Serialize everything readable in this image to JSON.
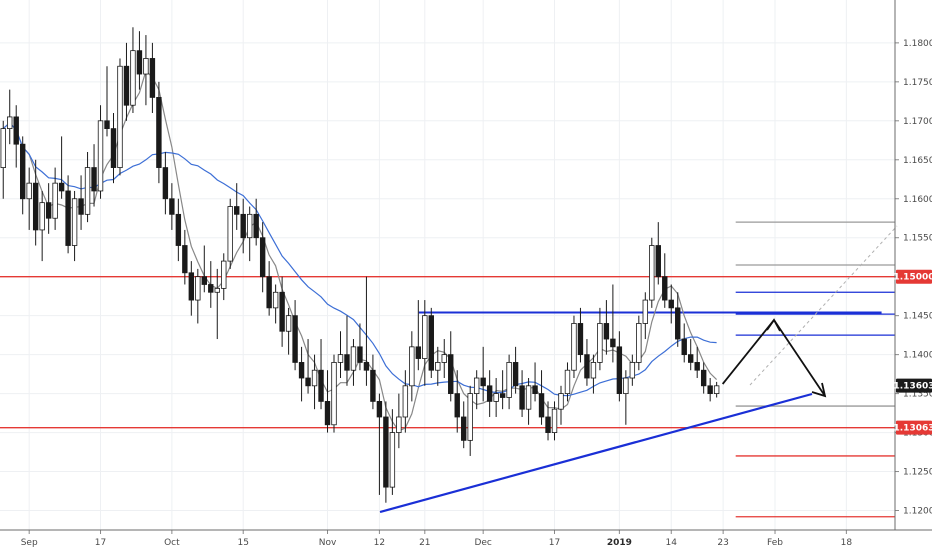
{
  "chart_data": {
    "type": "candlestick",
    "y_axis": {
      "ylim": [
        1.1175,
        1.1855
      ],
      "tick_labels": [
        "1.18000",
        "1.17500",
        "1.17000",
        "1.16500",
        "1.16000",
        "1.15500",
        "1.15000",
        "1.14500",
        "1.14000",
        "1.13500",
        "1.13000",
        "1.12500",
        "1.12000"
      ],
      "tick_values": [
        1.18,
        1.175,
        1.17,
        1.165,
        1.16,
        1.155,
        1.15,
        1.145,
        1.14,
        1.135,
        1.13,
        1.125,
        1.12
      ]
    },
    "x_axis": {
      "tick_labels": [
        "Sep",
        "17",
        "Oct",
        "15",
        "Nov",
        "12",
        "21",
        "Dec",
        "17",
        "2019",
        "14",
        "23",
        "Feb",
        "18"
      ],
      "tick_index": [
        4,
        15,
        26,
        37,
        50,
        58,
        65,
        74,
        85,
        95,
        103,
        111,
        119,
        130
      ],
      "bold_label": "2019",
      "n_bars": 138
    },
    "price_badges": [
      {
        "label": "1.15000",
        "value": 1.15,
        "color": "#e53935",
        "text_color": "#ffffff"
      },
      {
        "label": "1.13603",
        "value": 1.13603,
        "color": "#1a1a1a",
        "text_color": "#ffffff"
      },
      {
        "label": "1.13063",
        "value": 1.13063,
        "color": "#e53935",
        "text_color": "#ffffff"
      }
    ],
    "ohlc": [
      [
        1.164,
        1.17,
        1.16,
        1.169
      ],
      [
        1.169,
        1.174,
        1.167,
        1.1705
      ],
      [
        1.1705,
        1.172,
        1.164,
        1.167
      ],
      [
        1.167,
        1.168,
        1.158,
        1.16
      ],
      [
        1.16,
        1.164,
        1.156,
        1.162
      ],
      [
        1.162,
        1.165,
        1.154,
        1.156
      ],
      [
        1.156,
        1.161,
        1.152,
        1.1595
      ],
      [
        1.1595,
        1.162,
        1.1555,
        1.1575
      ],
      [
        1.1575,
        1.164,
        1.156,
        1.162
      ],
      [
        1.162,
        1.168,
        1.16,
        1.161
      ],
      [
        1.161,
        1.163,
        1.153,
        1.154
      ],
      [
        1.154,
        1.161,
        1.152,
        1.16
      ],
      [
        1.16,
        1.163,
        1.156,
        1.158
      ],
      [
        1.158,
        1.166,
        1.157,
        1.164
      ],
      [
        1.164,
        1.167,
        1.159,
        1.161
      ],
      [
        1.161,
        1.172,
        1.16,
        1.17
      ],
      [
        1.17,
        1.177,
        1.168,
        1.169
      ],
      [
        1.169,
        1.171,
        1.162,
        1.164
      ],
      [
        1.164,
        1.178,
        1.163,
        1.177
      ],
      [
        1.177,
        1.18,
        1.17,
        1.172
      ],
      [
        1.172,
        1.182,
        1.171,
        1.179
      ],
      [
        1.179,
        1.1815,
        1.174,
        1.176
      ],
      [
        1.176,
        1.181,
        1.172,
        1.178
      ],
      [
        1.178,
        1.18,
        1.171,
        1.173
      ],
      [
        1.173,
        1.175,
        1.162,
        1.164
      ],
      [
        1.164,
        1.166,
        1.158,
        1.16
      ],
      [
        1.16,
        1.162,
        1.156,
        1.158
      ],
      [
        1.158,
        1.16,
        1.152,
        1.154
      ],
      [
        1.154,
        1.156,
        1.149,
        1.1505
      ],
      [
        1.1505,
        1.152,
        1.145,
        1.147
      ],
      [
        1.147,
        1.151,
        1.144,
        1.15
      ],
      [
        1.15,
        1.154,
        1.148,
        1.149
      ],
      [
        1.149,
        1.152,
        1.146,
        1.148
      ],
      [
        1.148,
        1.151,
        1.142,
        1.1485
      ],
      [
        1.1485,
        1.153,
        1.147,
        1.152
      ],
      [
        1.152,
        1.16,
        1.151,
        1.159
      ],
      [
        1.159,
        1.162,
        1.156,
        1.158
      ],
      [
        1.158,
        1.16,
        1.153,
        1.155
      ],
      [
        1.155,
        1.159,
        1.152,
        1.158
      ],
      [
        1.158,
        1.16,
        1.154,
        1.155
      ],
      [
        1.155,
        1.157,
        1.148,
        1.15
      ],
      [
        1.15,
        1.152,
        1.145,
        1.146
      ],
      [
        1.146,
        1.149,
        1.144,
        1.148
      ],
      [
        1.148,
        1.15,
        1.141,
        1.143
      ],
      [
        1.143,
        1.146,
        1.14,
        1.145
      ],
      [
        1.145,
        1.147,
        1.138,
        1.139
      ],
      [
        1.139,
        1.141,
        1.134,
        1.137
      ],
      [
        1.137,
        1.142,
        1.135,
        1.136
      ],
      [
        1.136,
        1.14,
        1.133,
        1.138
      ],
      [
        1.138,
        1.142,
        1.133,
        1.134
      ],
      [
        1.134,
        1.138,
        1.13,
        1.131
      ],
      [
        1.131,
        1.14,
        1.13,
        1.139
      ],
      [
        1.139,
        1.143,
        1.137,
        1.14
      ],
      [
        1.14,
        1.145,
        1.136,
        1.138
      ],
      [
        1.138,
        1.142,
        1.136,
        1.141
      ],
      [
        1.141,
        1.144,
        1.138,
        1.139
      ],
      [
        1.139,
        1.15,
        1.136,
        1.138
      ],
      [
        1.138,
        1.14,
        1.133,
        1.134
      ],
      [
        1.134,
        1.135,
        1.122,
        1.132
      ],
      [
        1.132,
        1.134,
        1.121,
        1.123
      ],
      [
        1.123,
        1.133,
        1.122,
        1.13
      ],
      [
        1.13,
        1.135,
        1.128,
        1.132
      ],
      [
        1.132,
        1.138,
        1.13,
        1.136
      ],
      [
        1.136,
        1.143,
        1.134,
        1.141
      ],
      [
        1.141,
        1.147,
        1.138,
        1.1395
      ],
      [
        1.1395,
        1.147,
        1.136,
        1.145
      ],
      [
        1.145,
        1.146,
        1.137,
        1.138
      ],
      [
        1.138,
        1.141,
        1.136,
        1.139
      ],
      [
        1.139,
        1.142,
        1.137,
        1.14
      ],
      [
        1.14,
        1.143,
        1.134,
        1.135
      ],
      [
        1.135,
        1.138,
        1.13,
        1.132
      ],
      [
        1.132,
        1.134,
        1.128,
        1.129
      ],
      [
        1.129,
        1.136,
        1.127,
        1.135
      ],
      [
        1.135,
        1.138,
        1.133,
        1.137
      ],
      [
        1.137,
        1.141,
        1.134,
        1.136
      ],
      [
        1.136,
        1.138,
        1.132,
        1.134
      ],
      [
        1.134,
        1.137,
        1.132,
        1.135
      ],
      [
        1.135,
        1.138,
        1.133,
        1.1345
      ],
      [
        1.1345,
        1.14,
        1.133,
        1.139
      ],
      [
        1.139,
        1.141,
        1.135,
        1.136
      ],
      [
        1.136,
        1.138,
        1.132,
        1.133
      ],
      [
        1.133,
        1.137,
        1.131,
        1.136
      ],
      [
        1.136,
        1.139,
        1.134,
        1.135
      ],
      [
        1.135,
        1.138,
        1.131,
        1.132
      ],
      [
        1.132,
        1.134,
        1.129,
        1.13
      ],
      [
        1.13,
        1.134,
        1.129,
        1.133
      ],
      [
        1.133,
        1.136,
        1.131,
        1.135
      ],
      [
        1.135,
        1.139,
        1.134,
        1.138
      ],
      [
        1.138,
        1.145,
        1.137,
        1.144
      ],
      [
        1.144,
        1.146,
        1.139,
        1.14
      ],
      [
        1.14,
        1.142,
        1.136,
        1.137
      ],
      [
        1.137,
        1.14,
        1.135,
        1.139
      ],
      [
        1.139,
        1.146,
        1.138,
        1.144
      ],
      [
        1.144,
        1.147,
        1.14,
        1.142
      ],
      [
        1.142,
        1.149,
        1.139,
        1.141
      ],
      [
        1.141,
        1.143,
        1.134,
        1.135
      ],
      [
        1.135,
        1.138,
        1.131,
        1.137
      ],
      [
        1.137,
        1.14,
        1.136,
        1.139
      ],
      [
        1.139,
        1.145,
        1.138,
        1.144
      ],
      [
        1.144,
        1.148,
        1.142,
        1.147
      ],
      [
        1.147,
        1.155,
        1.146,
        1.154
      ],
      [
        1.154,
        1.157,
        1.149,
        1.15
      ],
      [
        1.15,
        1.153,
        1.146,
        1.147
      ],
      [
        1.147,
        1.149,
        1.144,
        1.146
      ],
      [
        1.146,
        1.148,
        1.141,
        1.142
      ],
      [
        1.142,
        1.144,
        1.139,
        1.14
      ],
      [
        1.14,
        1.142,
        1.138,
        1.139
      ],
      [
        1.139,
        1.141,
        1.137,
        1.138
      ],
      [
        1.138,
        1.139,
        1.135,
        1.136
      ],
      [
        1.136,
        1.137,
        1.134,
        1.135
      ],
      [
        1.135,
        1.1365,
        1.1345,
        1.136
      ]
    ],
    "moving_averages": [
      {
        "color": "#888888",
        "period": 5
      },
      {
        "color": "#3d6fd6",
        "period": 20
      }
    ],
    "horizontal_levels": [
      {
        "value": 1.15,
        "color": "#e53935",
        "x_from": 0.0,
        "x_to": 1.0
      },
      {
        "value": 1.13063,
        "color": "#e53935",
        "x_from": 0.0,
        "x_to": 1.0
      },
      {
        "value": 1.1454,
        "color": "#1a2fd6",
        "x_from": 0.468,
        "x_to": 0.985
      },
      {
        "value": 1.157,
        "color": "#9a9a9a",
        "x_from": 0.822,
        "x_to": 1.0
      },
      {
        "value": 1.1515,
        "color": "#9a9a9a",
        "x_from": 0.822,
        "x_to": 1.0
      },
      {
        "value": 1.148,
        "color": "#1a2fd6",
        "x_from": 0.822,
        "x_to": 1.0
      },
      {
        "value": 1.1452,
        "color": "#1a2fd6",
        "x_from": 0.822,
        "x_to": 1.0
      },
      {
        "value": 1.1425,
        "color": "#1a2fd6",
        "x_from": 0.822,
        "x_to": 1.0
      },
      {
        "value": 1.1334,
        "color": "#9a9a9a",
        "x_from": 0.822,
        "x_to": 1.0
      },
      {
        "value": 1.127,
        "color": "#e53935",
        "x_from": 0.822,
        "x_to": 1.0
      },
      {
        "value": 1.1192,
        "color": "#e53935",
        "x_from": 0.822,
        "x_to": 1.0
      }
    ]
  }
}
